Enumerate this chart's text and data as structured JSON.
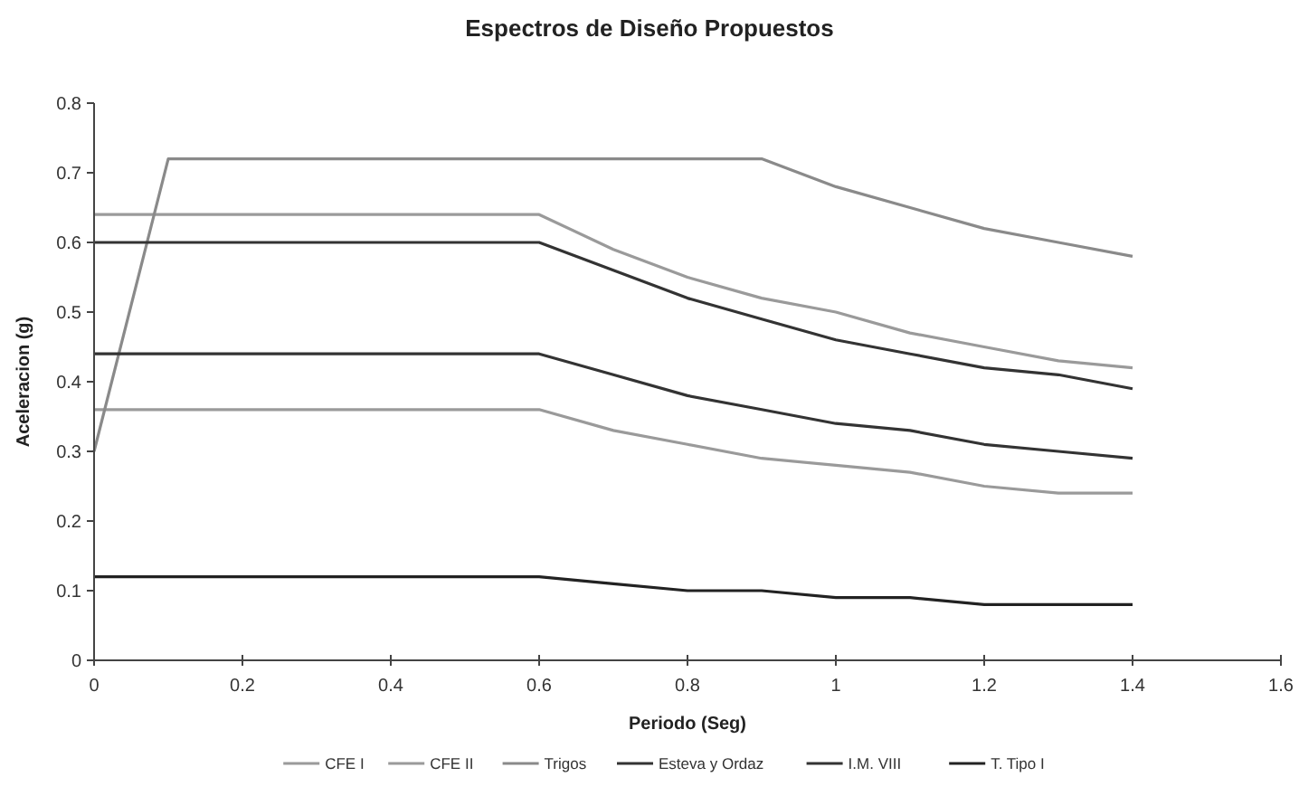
{
  "chart_data": {
    "type": "line",
    "title": "Espectros de Diseño Propuestos",
    "xlabel": "Periodo (Seg)",
    "ylabel": "Aceleracion (g)",
    "xlim": [
      0,
      1.6
    ],
    "xticks": [
      0,
      0.2,
      0.4,
      0.6,
      0.8,
      1,
      1.2,
      1.4,
      1.6
    ],
    "ylim": [
      0,
      0.8
    ],
    "yticks": [
      0,
      0.1,
      0.2,
      0.3,
      0.4,
      0.5,
      0.6,
      0.7,
      0.8
    ],
    "grid": false,
    "legend": "bottom",
    "marker": "none",
    "line_style": "solid",
    "series": [
      {
        "name": "CFE I",
        "color": "#9a9a9a",
        "x": [
          0,
          0.6,
          0.7,
          0.8,
          0.9,
          1.0,
          1.1,
          1.2,
          1.3,
          1.4
        ],
        "values": [
          0.36,
          0.36,
          0.33,
          0.31,
          0.29,
          0.28,
          0.27,
          0.25,
          0.24,
          0.24
        ]
      },
      {
        "name": "CFE II",
        "color": "#9a9a9a",
        "x": [
          0,
          0.6,
          0.7,
          0.8,
          0.9,
          1.0,
          1.1,
          1.2,
          1.3,
          1.4
        ],
        "values": [
          0.64,
          0.64,
          0.59,
          0.55,
          0.52,
          0.5,
          0.47,
          0.45,
          0.43,
          0.42
        ]
      },
      {
        "name": "Trigos",
        "color": "#8a8a8a",
        "x": [
          0,
          0.1,
          0.9,
          1.0,
          1.1,
          1.2,
          1.3,
          1.4
        ],
        "values": [
          0.3,
          0.72,
          0.72,
          0.68,
          0.65,
          0.62,
          0.6,
          0.58
        ]
      },
      {
        "name": "Esteva y Ordaz",
        "color": "#333333",
        "x": [
          0,
          0.6,
          0.7,
          0.8,
          0.9,
          1.0,
          1.1,
          1.2,
          1.3,
          1.4
        ],
        "values": [
          0.6,
          0.6,
          0.56,
          0.52,
          0.49,
          0.46,
          0.44,
          0.42,
          0.41,
          0.39
        ]
      },
      {
        "name": "I.M. VIII",
        "color": "#333333",
        "x": [
          0,
          0.6,
          0.7,
          0.8,
          0.9,
          1.0,
          1.1,
          1.2,
          1.3,
          1.4
        ],
        "values": [
          0.44,
          0.44,
          0.41,
          0.38,
          0.36,
          0.34,
          0.33,
          0.31,
          0.3,
          0.29
        ]
      },
      {
        "name": "T. Tipo I",
        "color": "#222222",
        "x": [
          0,
          0.6,
          0.7,
          0.8,
          0.9,
          1.0,
          1.1,
          1.2,
          1.3,
          1.4
        ],
        "values": [
          0.12,
          0.12,
          0.11,
          0.1,
          0.1,
          0.09,
          0.09,
          0.08,
          0.08,
          0.08
        ]
      }
    ]
  }
}
